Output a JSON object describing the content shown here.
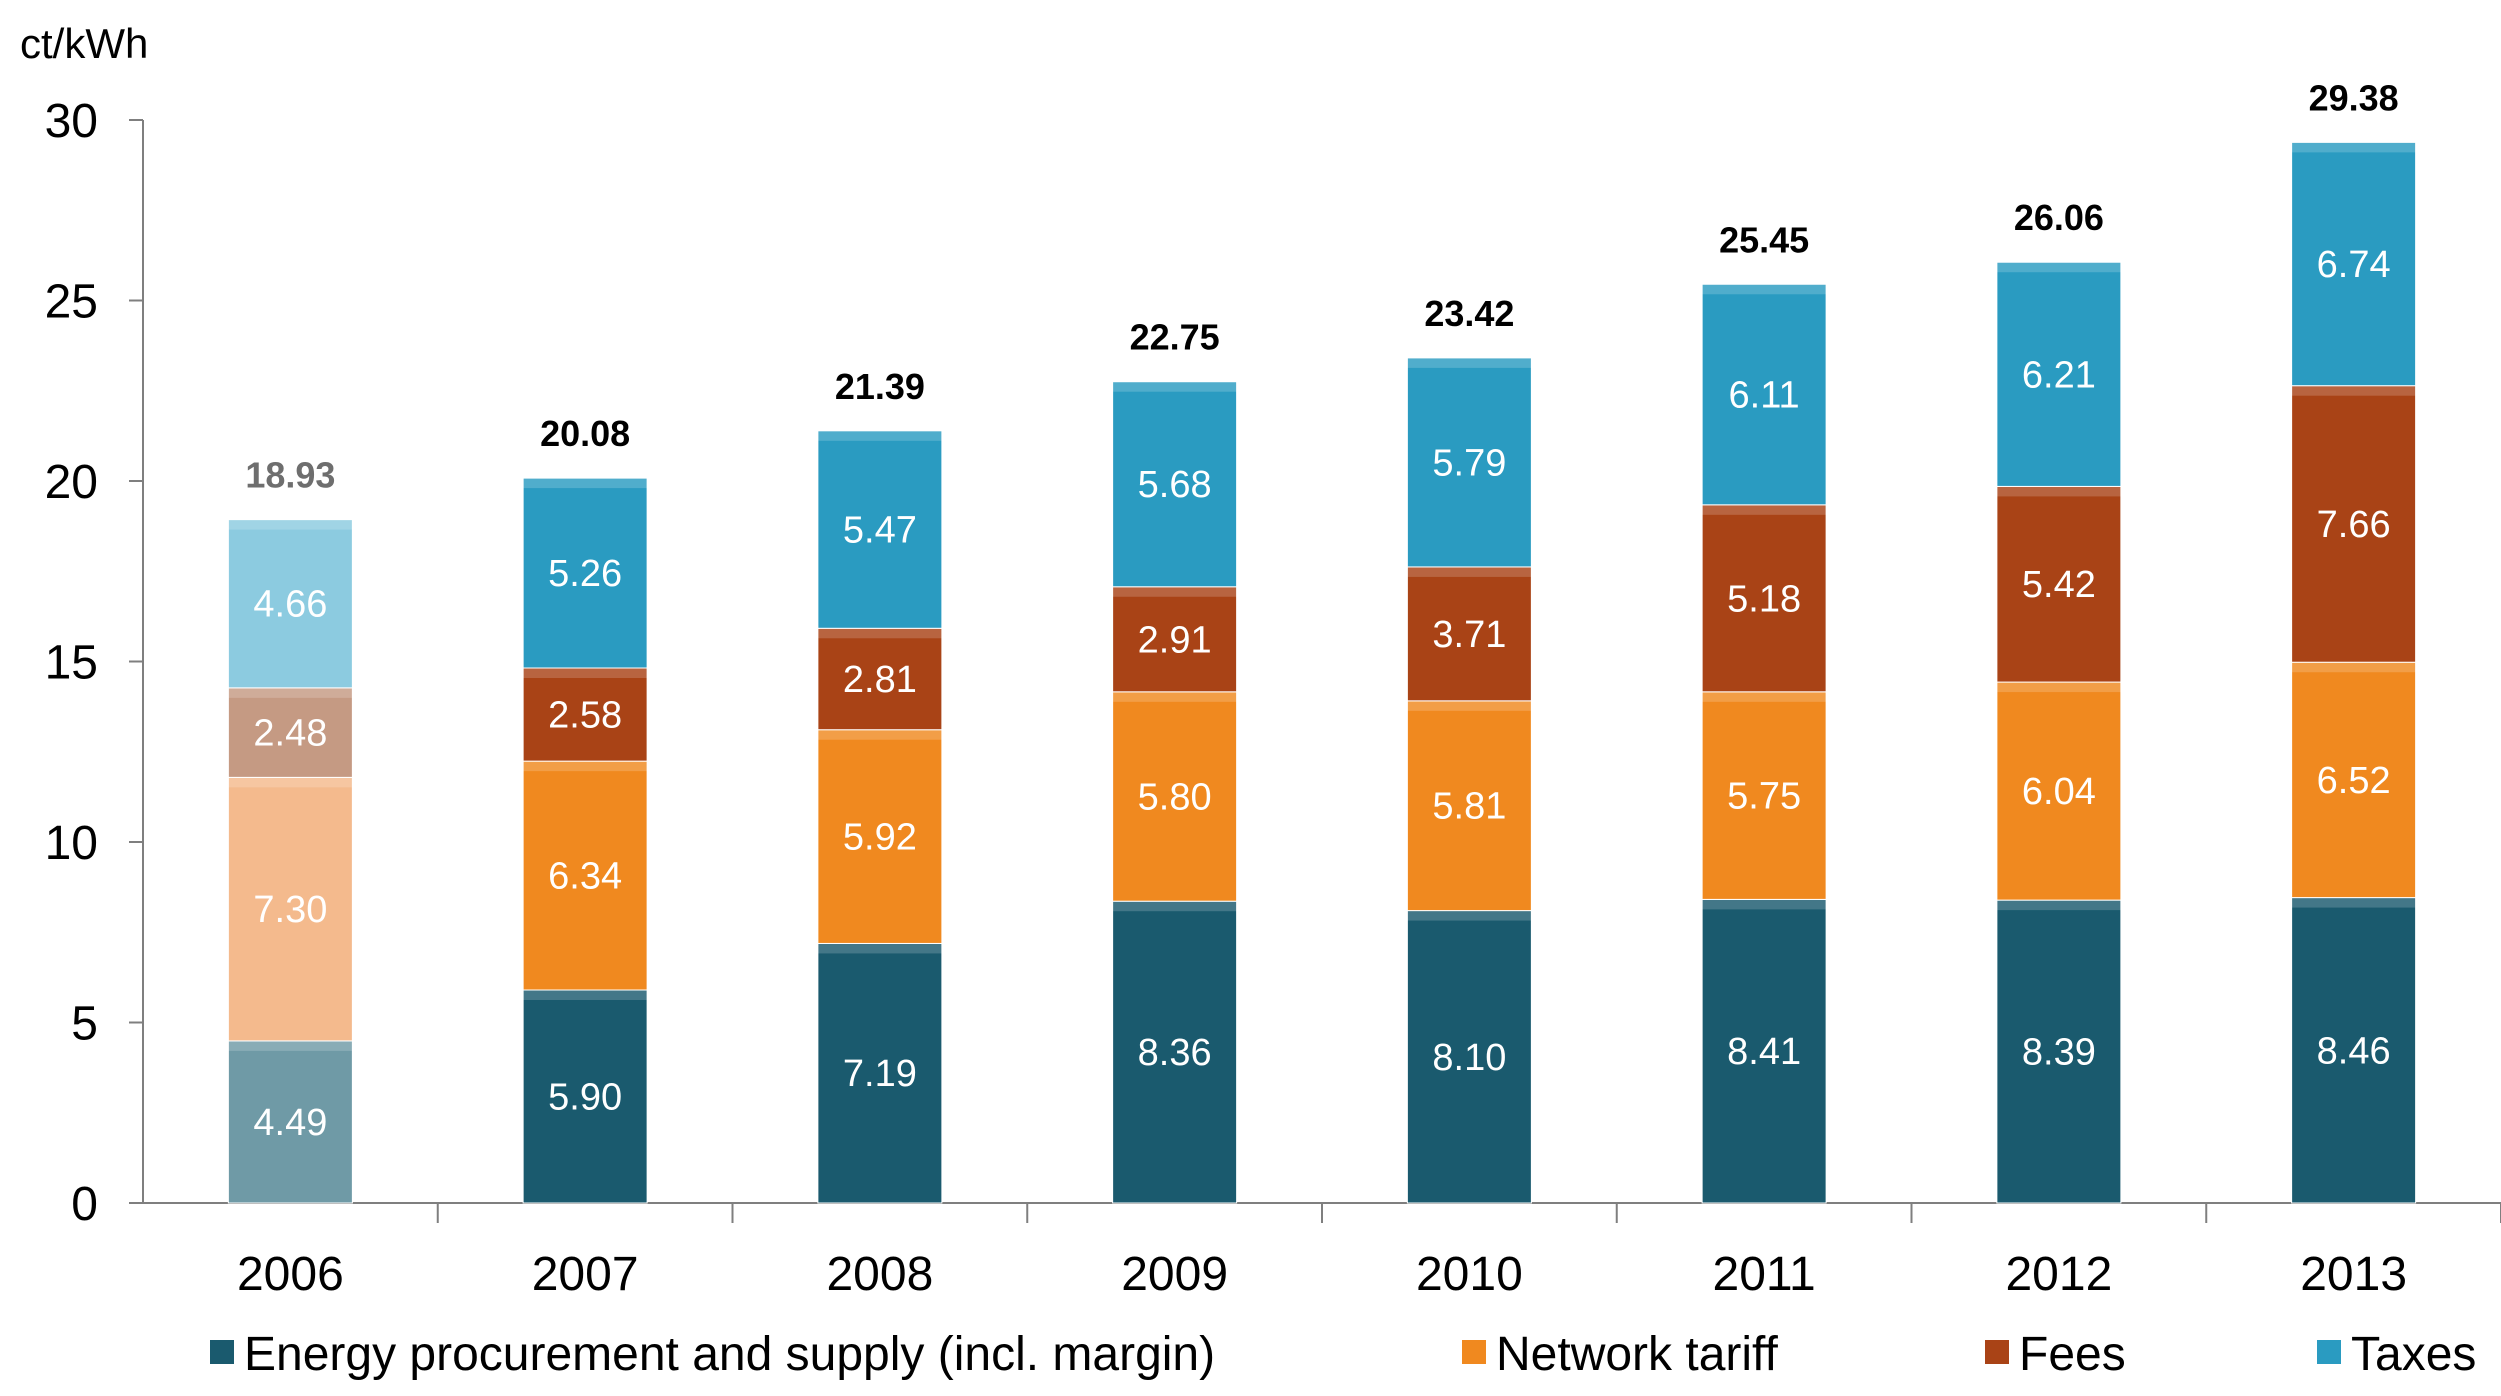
{
  "chart_data": {
    "type": "bar",
    "stacked": true,
    "ylabel": "ct/kWh",
    "ylim": [
      0,
      30
    ],
    "yticks": [
      0,
      5,
      10,
      15,
      20,
      25,
      30
    ],
    "grid": false,
    "legend_position": "bottom",
    "categories": [
      "2006",
      "2007",
      "2008",
      "2009",
      "2010",
      "2011",
      "2012",
      "2013"
    ],
    "totals": [
      "18.93",
      "20.08",
      "21.39",
      "22.75",
      "23.42",
      "25.45",
      "26.06",
      "29.38"
    ],
    "faded_categories": [
      "2006"
    ],
    "series": [
      {
        "name": "Energy procurement and supply (incl. margin)",
        "color": "#1a5a6e",
        "values": [
          4.49,
          5.9,
          7.19,
          8.36,
          8.1,
          8.41,
          8.39,
          8.46
        ],
        "labels": [
          "4.49",
          "5.90",
          "7.19",
          "8.36",
          "8.10",
          "8.41",
          "8.39",
          "8.46"
        ]
      },
      {
        "name": "Network tariff",
        "color": "#f0891f",
        "values": [
          7.3,
          6.34,
          5.92,
          5.8,
          5.81,
          5.75,
          6.04,
          6.52
        ],
        "labels": [
          "7.30",
          "6.34",
          "5.92",
          "5.80",
          "5.81",
          "5.75",
          "6.04",
          "6.52"
        ]
      },
      {
        "name": "Fees",
        "color": "#a94316",
        "values": [
          2.48,
          2.58,
          2.81,
          2.91,
          3.71,
          5.18,
          5.42,
          7.66
        ],
        "labels": [
          "2.48",
          "2.58",
          "2.81",
          "2.91",
          "3.71",
          "5.18",
          "5.42",
          "7.66"
        ]
      },
      {
        "name": "Taxes",
        "color": "#2a9bc1",
        "values": [
          4.66,
          5.26,
          5.47,
          5.68,
          5.79,
          6.11,
          6.21,
          6.74
        ],
        "labels": [
          "4.66",
          "5.26",
          "5.47",
          "5.68",
          "5.79",
          "6.11",
          "6.21",
          "6.74"
        ]
      }
    ],
    "faded_colors": [
      "#6f9aa6",
      "#f4ba8d",
      "#c59a83",
      "#8ccbe0"
    ]
  }
}
